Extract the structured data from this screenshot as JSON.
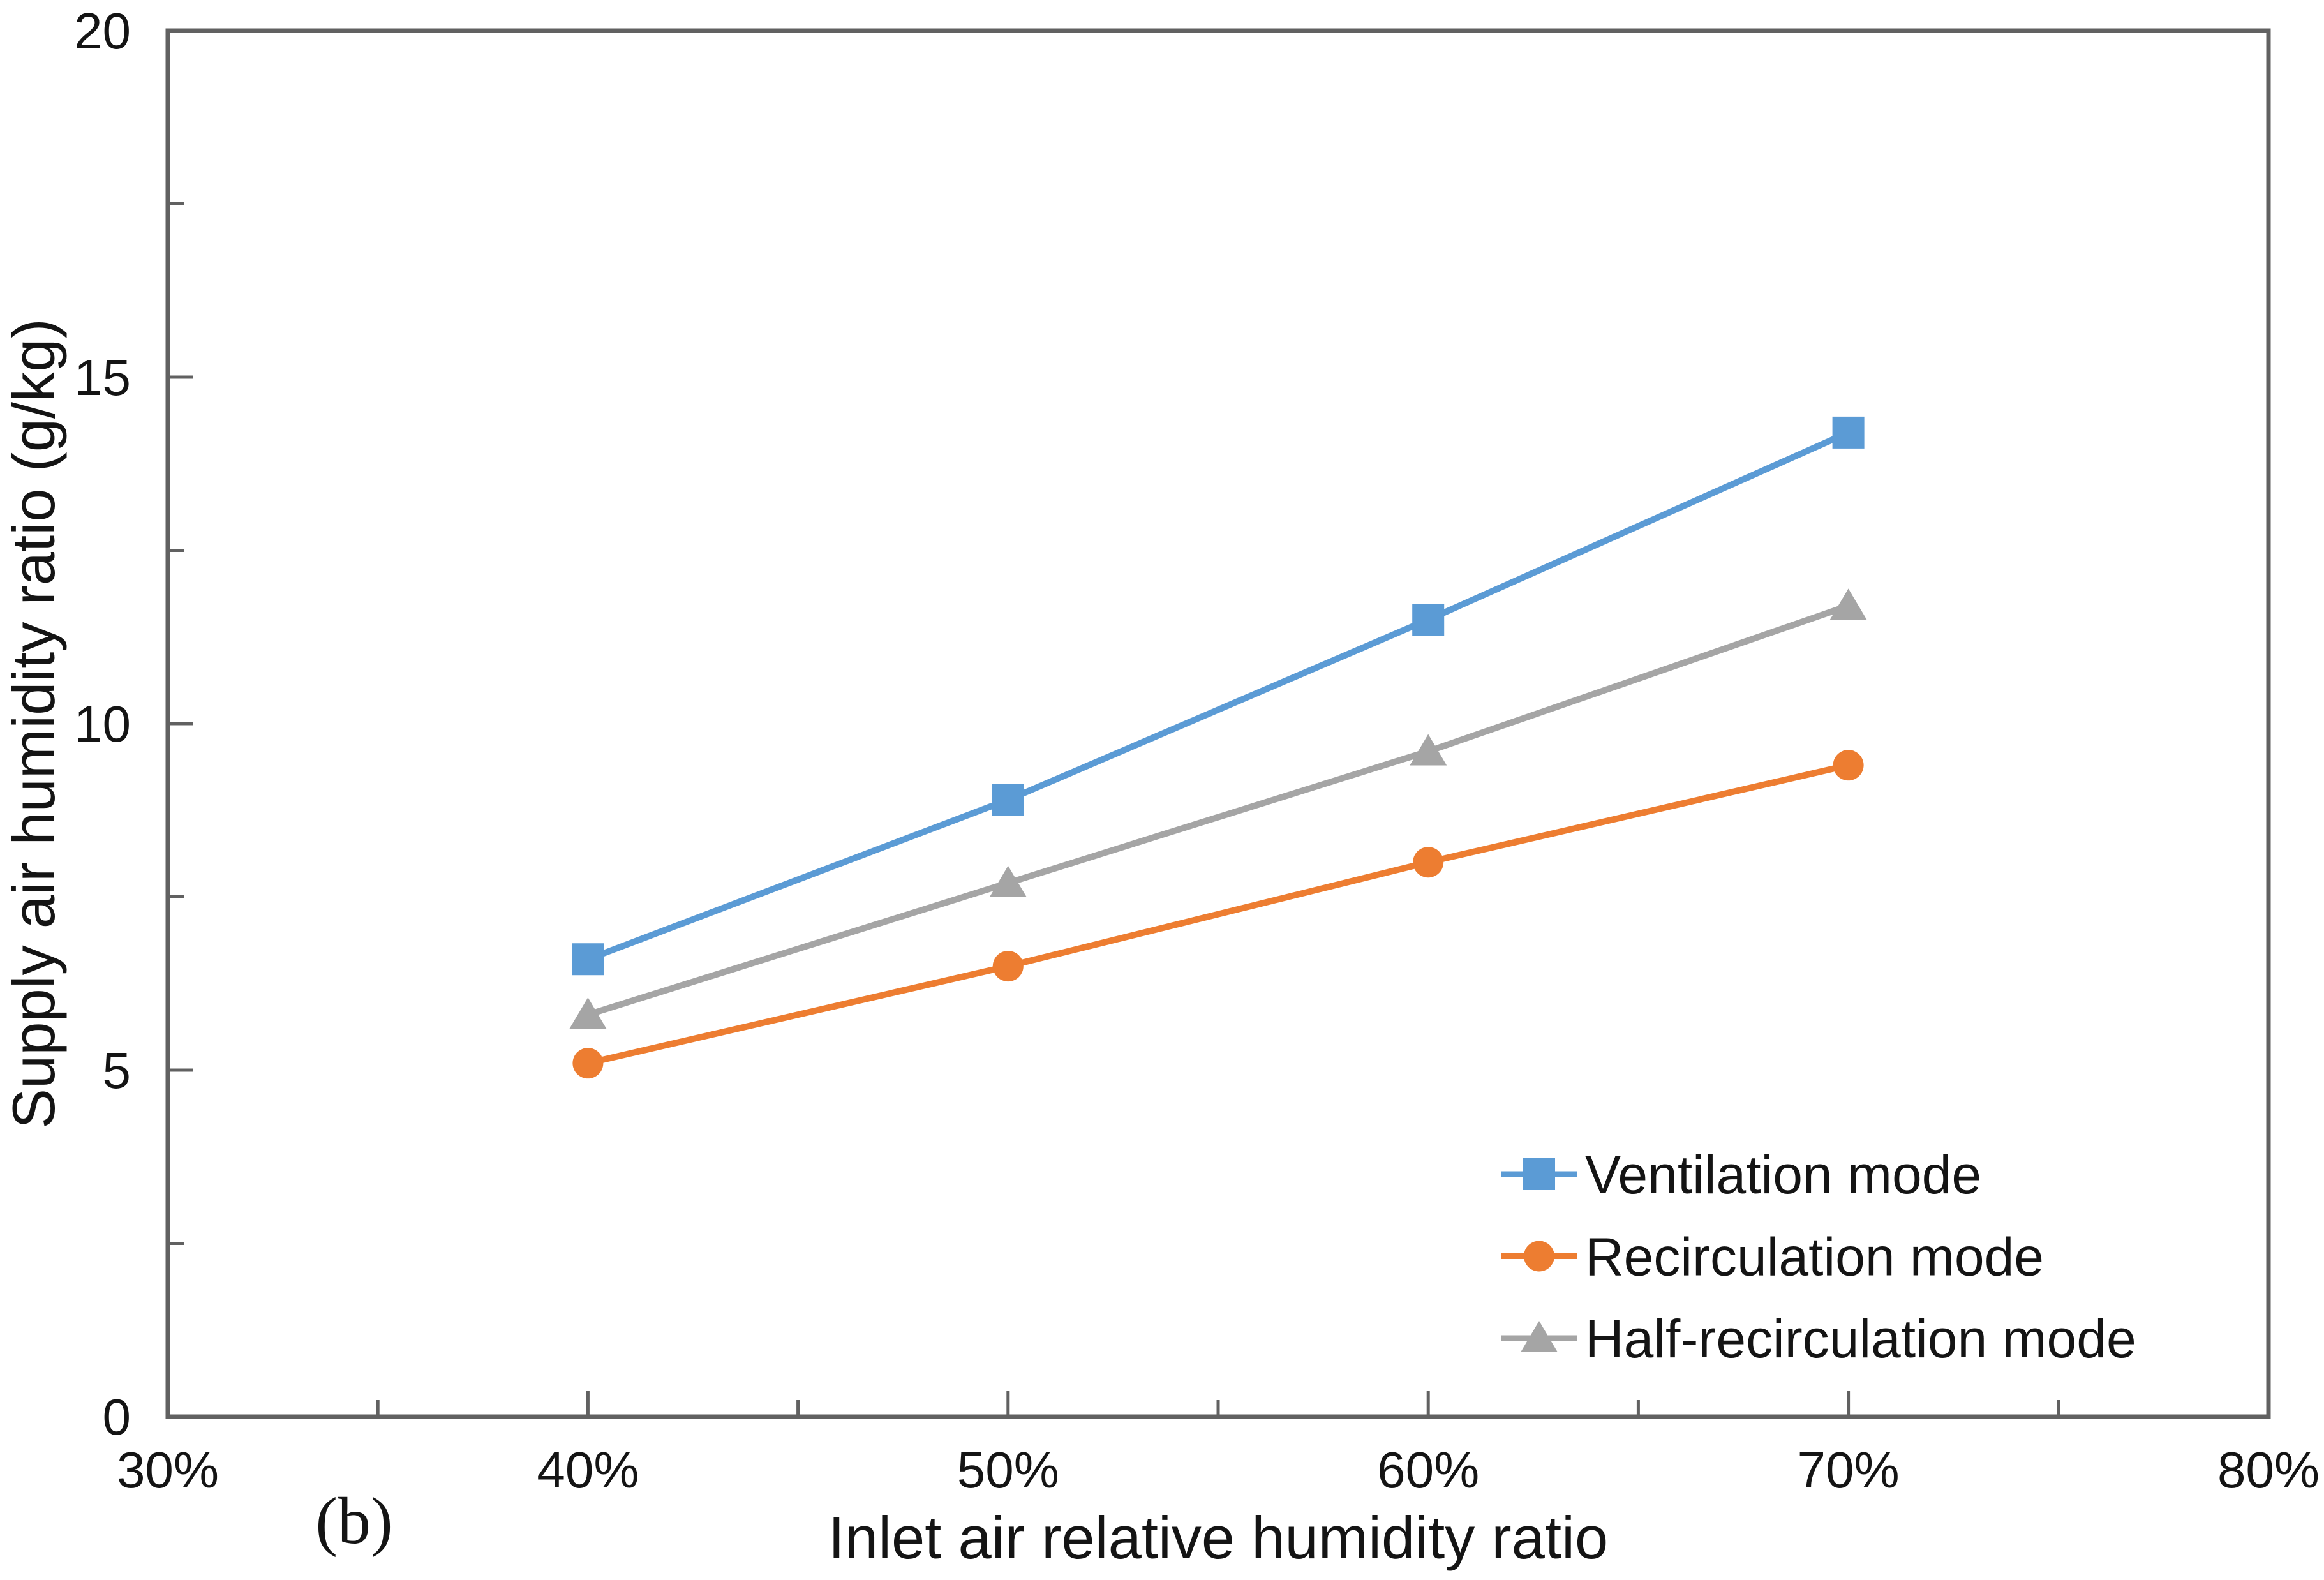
{
  "figure": {
    "panel_label": "(b)"
  },
  "chart_data": {
    "type": "line",
    "title": "",
    "xlabel": "Inlet air relative humidity ratio",
    "ylabel": "Supply air humidity ratio (g/kg)",
    "x": [
      40,
      50,
      60,
      70
    ],
    "series": [
      {
        "name": "Ventilation mode",
        "marker": "square",
        "color": "#5B9BD5",
        "values": [
          6.6,
          8.9,
          11.5,
          14.2
        ]
      },
      {
        "name": "Recirculation mode",
        "marker": "circle",
        "color": "#ED7D31",
        "values": [
          5.1,
          6.5,
          8.0,
          9.4
        ]
      },
      {
        "name": "Half-recirculation mode",
        "marker": "triangle",
        "color": "#A5A5A5",
        "values": [
          5.8,
          7.7,
          9.6,
          11.7
        ]
      }
    ],
    "xlim": [
      30,
      80
    ],
    "ylim": [
      0,
      20
    ],
    "x_major_ticks": [
      30,
      40,
      50,
      60,
      70,
      80
    ],
    "x_tick_labels": [
      "30%",
      "40%",
      "50%",
      "60%",
      "70%",
      "80%"
    ],
    "x_minor_step": 5,
    "y_major_ticks": [
      0,
      5,
      10,
      15,
      20
    ],
    "y_tick_labels": [
      "0",
      "5",
      "10",
      "15",
      "20"
    ],
    "y_minor_step": 2.5,
    "grid": false,
    "legend_position": "lower right",
    "colors": {
      "axis": "#616161",
      "text": "#141414",
      "background": "#ffffff"
    }
  }
}
